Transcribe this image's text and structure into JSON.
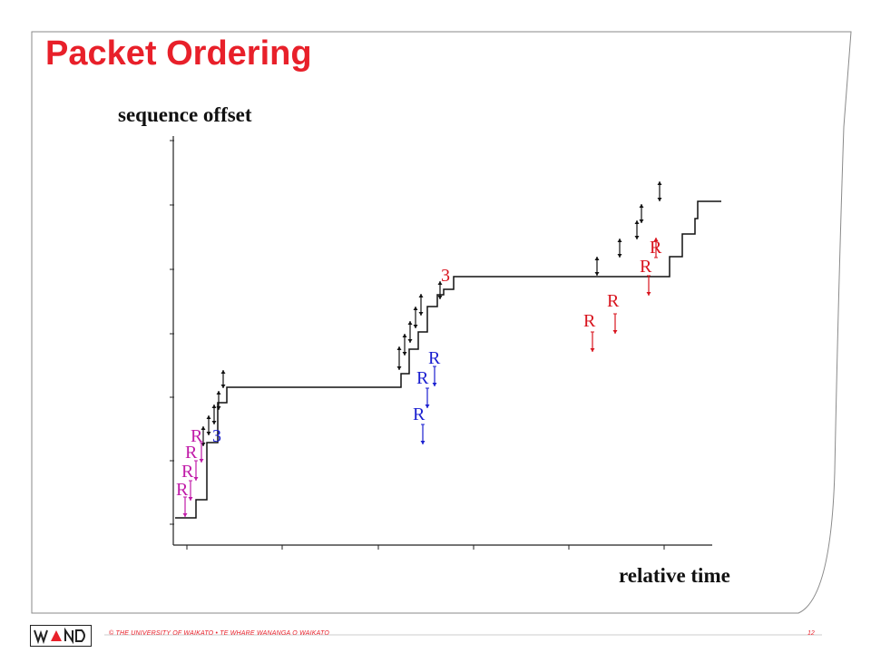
{
  "slide": {
    "title": "Packet Ordering",
    "footer": "© THE UNIVERSITY OF WAIKATO  •  TE WHARE WANANGA O WAIKATO",
    "page_number": "12",
    "logo_text": "WAND",
    "colors": {
      "title": "#e8202a",
      "accent": "#e8202a"
    }
  },
  "diagram": {
    "ylabel": "sequence offset",
    "xlabel": "relative time",
    "colors": {
      "trace": "#111111",
      "magenta": "#c01aa8",
      "blue": "#1a1fd0",
      "red": "#d8141e"
    },
    "annotations": [
      {
        "text": "R",
        "color": "magenta"
      },
      {
        "text": "R",
        "color": "magenta"
      },
      {
        "text": "R",
        "color": "magenta"
      },
      {
        "text": "R",
        "color": "magenta"
      },
      {
        "text": "3",
        "color": "blue"
      },
      {
        "text": "R",
        "color": "blue"
      },
      {
        "text": "R",
        "color": "blue"
      },
      {
        "text": "R",
        "color": "blue"
      },
      {
        "text": "3",
        "color": "red"
      },
      {
        "text": "R",
        "color": "red"
      },
      {
        "text": "R",
        "color": "red"
      },
      {
        "text": "R",
        "color": "red"
      },
      {
        "text": "R",
        "color": "red"
      }
    ]
  }
}
